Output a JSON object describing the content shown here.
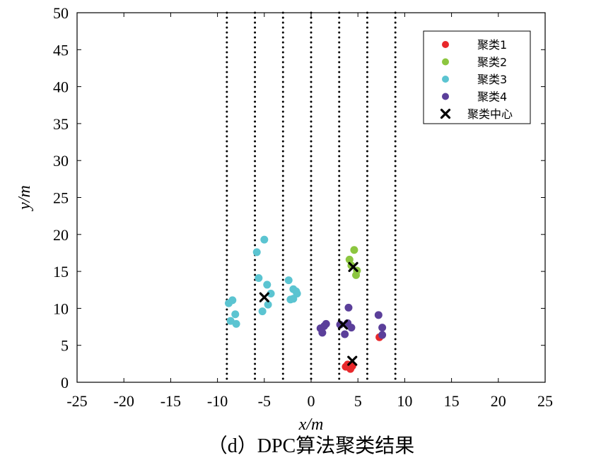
{
  "chart_data": {
    "type": "scatter",
    "caption": "（d）DPC算法聚类结果",
    "xlabel": "x/m",
    "ylabel": "y/m",
    "xlim": [
      -25,
      25
    ],
    "ylim": [
      0,
      50
    ],
    "xticks": [
      "-25",
      "-20",
      "-15",
      "-10",
      "-5",
      "0",
      "5",
      "10",
      "15",
      "20",
      "25"
    ],
    "yticks": [
      "0",
      "5",
      "10",
      "15",
      "20",
      "25",
      "30",
      "35",
      "40",
      "45",
      "50"
    ],
    "grid": false,
    "legend_position": "top-right",
    "lane_lines_x": [
      -9,
      -6,
      -3,
      0,
      3,
      6,
      9
    ],
    "series": [
      {
        "name": "聚类1",
        "color": "#e8282b",
        "marker": "dot",
        "points": [
          [
            3.7,
            2.1
          ],
          [
            4.2,
            1.8
          ],
          [
            4.4,
            2.2
          ],
          [
            3.9,
            2.4
          ],
          [
            7.3,
            6.1
          ]
        ]
      },
      {
        "name": "聚类2",
        "color": "#8cc63f",
        "marker": "dot",
        "points": [
          [
            4.6,
            17.9
          ],
          [
            4.1,
            16.6
          ],
          [
            4.9,
            15.1
          ],
          [
            4.8,
            14.5
          ],
          [
            4.3,
            15.8
          ]
        ]
      },
      {
        "name": "聚类3",
        "color": "#5bc4d1",
        "marker": "dot",
        "points": [
          [
            -8.8,
            10.7
          ],
          [
            -8.4,
            11.1
          ],
          [
            -8.1,
            9.2
          ],
          [
            -8.6,
            8.3
          ],
          [
            -8.0,
            7.9
          ],
          [
            -5.8,
            17.6
          ],
          [
            -5.0,
            19.3
          ],
          [
            -5.6,
            14.1
          ],
          [
            -4.7,
            13.2
          ],
          [
            -4.3,
            12.0
          ],
          [
            -4.6,
            10.5
          ],
          [
            -5.2,
            9.6
          ],
          [
            -2.4,
            13.8
          ],
          [
            -1.9,
            12.6
          ],
          [
            -1.6,
            12.3
          ],
          [
            -1.9,
            11.3
          ],
          [
            -2.2,
            11.2
          ],
          [
            -1.5,
            12.0
          ]
        ]
      },
      {
        "name": "聚类4",
        "color": "#5b3f9a",
        "marker": "dot",
        "points": [
          [
            1.0,
            7.3
          ],
          [
            1.2,
            6.7
          ],
          [
            1.6,
            7.9
          ],
          [
            1.4,
            7.6
          ],
          [
            3.1,
            7.8
          ],
          [
            3.6,
            6.5
          ],
          [
            4.0,
            10.1
          ],
          [
            4.3,
            7.4
          ],
          [
            3.9,
            8.0
          ],
          [
            7.2,
            9.1
          ],
          [
            7.6,
            7.4
          ],
          [
            7.6,
            6.4
          ]
        ]
      }
    ],
    "centers": {
      "name": "聚类中心",
      "color": "#000000",
      "marker": "x",
      "points": [
        [
          4.5,
          15.6
        ],
        [
          -5.0,
          11.5
        ],
        [
          3.4,
          7.8
        ],
        [
          4.4,
          2.9
        ]
      ]
    }
  }
}
